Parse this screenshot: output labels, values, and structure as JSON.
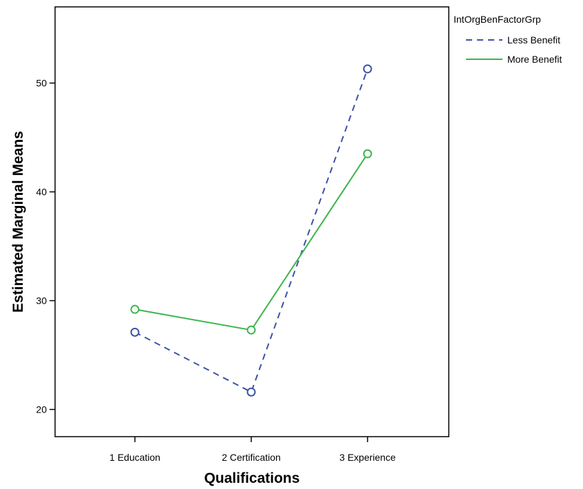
{
  "chart_data": {
    "type": "line",
    "title": "",
    "xlabel": "Qualifications",
    "ylabel": "Estimated Marginal Means",
    "categories": [
      "1 Education",
      "2 Certification",
      "3 Experience"
    ],
    "ylim": [
      17.5,
      57
    ],
    "yticks": [
      20,
      30,
      40,
      50
    ],
    "grid": false,
    "legend": {
      "title": "IntOrgBenFactorGrp",
      "placement": "top-right, outside plot"
    },
    "series": [
      {
        "name": "Less Benefit",
        "values": [
          27.1,
          21.6,
          51.3
        ],
        "color": "#3b52a4",
        "dash": "dashed"
      },
      {
        "name": "More Benefit",
        "values": [
          29.2,
          27.3,
          43.5
        ],
        "color": "#3cb44b",
        "dash": "solid"
      }
    ]
  }
}
